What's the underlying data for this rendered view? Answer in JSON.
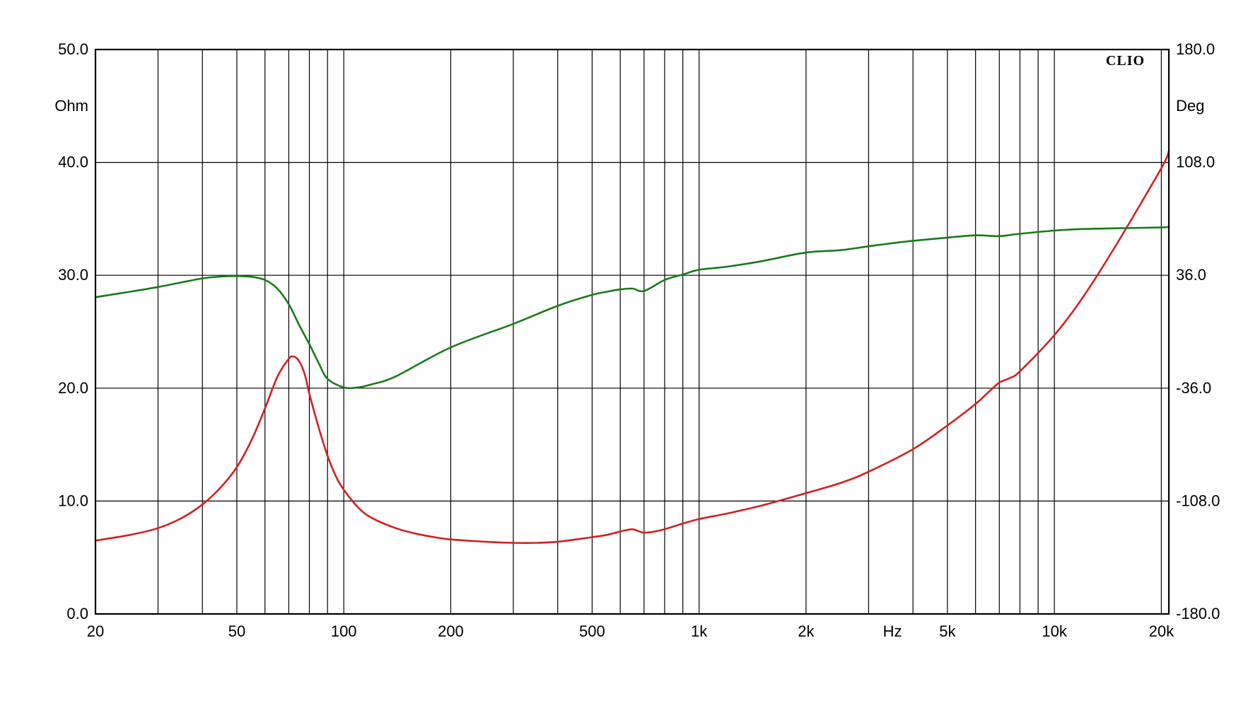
{
  "chart_data": {
    "type": "line",
    "brand": "CLIO",
    "x_scale": "log",
    "xlim": [
      20,
      21000
    ],
    "x_ticks": [
      {
        "value": 20,
        "label": "20"
      },
      {
        "value": 50,
        "label": "50"
      },
      {
        "value": 100,
        "label": "100"
      },
      {
        "value": 200,
        "label": "200"
      },
      {
        "value": 500,
        "label": "500"
      },
      {
        "value": 1000,
        "label": "1k"
      },
      {
        "value": 2000,
        "label": "2k"
      },
      {
        "value": 5000,
        "label": "5k"
      },
      {
        "value": 10000,
        "label": "10k"
      },
      {
        "value": 20000,
        "label": "20k"
      }
    ],
    "x_unit": "Hz",
    "x_unit_at": 3500,
    "x_gridlines": [
      20,
      30,
      40,
      50,
      60,
      70,
      80,
      90,
      100,
      200,
      300,
      400,
      500,
      600,
      700,
      800,
      900,
      1000,
      2000,
      3000,
      4000,
      5000,
      6000,
      7000,
      8000,
      9000,
      10000,
      20000
    ],
    "y_left": {
      "unit": "Ohm",
      "ylim": [
        0,
        50
      ],
      "ticks": [
        "0.0",
        "10.0",
        "20.0",
        "30.0",
        "40.0",
        "50.0"
      ]
    },
    "y_right": {
      "unit": "Deg",
      "ylim": [
        -180,
        180
      ],
      "ticks": [
        "-180.0",
        "-108.0",
        "-36.0",
        "36.0",
        "108.0",
        "180.0"
      ]
    },
    "grid": true,
    "series": [
      {
        "axis": "left",
        "color": "#d42020",
        "x": [
          20,
          25,
          30,
          35,
          40,
          45,
          50,
          55,
          60,
          65,
          70,
          72,
          74,
          76,
          78,
          80,
          85,
          90,
          95,
          100,
          110,
          120,
          140,
          160,
          180,
          200,
          250,
          300,
          350,
          400,
          450,
          500,
          550,
          600,
          620,
          650,
          680,
          700,
          750,
          800,
          900,
          1000,
          1200,
          1500,
          2000,
          2500,
          3000,
          4000,
          5000,
          6000,
          6500,
          7000,
          7500,
          8000,
          10000,
          12000,
          15000,
          20000,
          21000
        ],
        "y": [
          6.5,
          7.0,
          7.6,
          8.5,
          9.7,
          11.2,
          13.0,
          15.4,
          18.2,
          21.0,
          22.6,
          22.8,
          22.6,
          22.0,
          21.0,
          19.5,
          16.5,
          14.0,
          12.2,
          11.0,
          9.4,
          8.5,
          7.6,
          7.1,
          6.8,
          6.6,
          6.4,
          6.3,
          6.3,
          6.4,
          6.6,
          6.8,
          7.0,
          7.3,
          7.4,
          7.5,
          7.3,
          7.2,
          7.3,
          7.5,
          8.0,
          8.4,
          8.9,
          9.6,
          10.7,
          11.6,
          12.6,
          14.6,
          16.7,
          18.6,
          19.6,
          20.5,
          20.9,
          21.5,
          24.7,
          28.0,
          32.8,
          39.5,
          41.0
        ]
      },
      {
        "axis": "right",
        "color": "#1a7a1a",
        "x": [
          20,
          25,
          30,
          35,
          40,
          45,
          50,
          55,
          60,
          65,
          70,
          75,
          80,
          85,
          90,
          100,
          110,
          120,
          140,
          200,
          300,
          400,
          500,
          550,
          600,
          650,
          700,
          800,
          900,
          1000,
          1200,
          1500,
          2000,
          2500,
          3000,
          3500,
          4000,
          5000,
          6000,
          7000,
          8000,
          10000,
          12000,
          15000,
          20000,
          21000
        ],
        "y": [
          22.0,
          25.5,
          28.5,
          31.5,
          34.0,
          35.2,
          35.5,
          35.0,
          33.0,
          27.5,
          17.5,
          4.0,
          -8.0,
          -20.0,
          -30.0,
          -35.5,
          -35.5,
          -33.5,
          -28.5,
          -10.0,
          5.0,
          16.5,
          23.5,
          25.5,
          27.0,
          27.5,
          26.0,
          33.0,
          36.5,
          39.5,
          41.5,
          45.0,
          50.5,
          52.0,
          54.5,
          56.5,
          58.0,
          60.0,
          61.5,
          61.0,
          62.5,
          64.5,
          65.5,
          66.0,
          66.5,
          67.0
        ]
      }
    ]
  }
}
